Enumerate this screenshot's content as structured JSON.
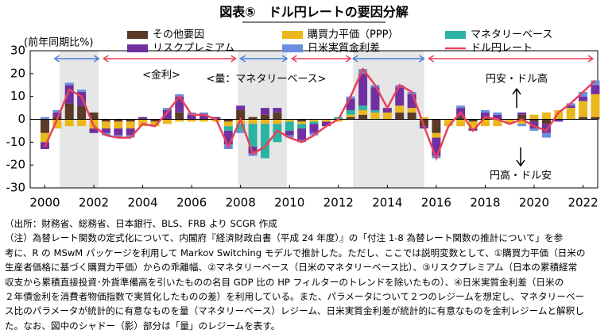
{
  "chart_data": {
    "type": "bar",
    "title": "図表⑤　ドル円レートの要因分解",
    "y_label": "(前年同期比%)",
    "x": [
      2000,
      2000.5,
      2001,
      2001.5,
      2002,
      2002.5,
      2003,
      2003.5,
      2004,
      2004.5,
      2005,
      2005.5,
      2006,
      2006.5,
      2007,
      2007.5,
      2008,
      2008.5,
      2009,
      2009.5,
      2010,
      2010.5,
      2011,
      2011.5,
      2012,
      2012.5,
      2013,
      2013.5,
      2014,
      2014.5,
      2015,
      2015.5,
      2016,
      2016.5,
      2017,
      2017.5,
      2018,
      2018.5,
      2019,
      2019.5,
      2020,
      2020.5,
      2021,
      2021.5,
      2022,
      2022.5
    ],
    "series": [
      {
        "name": "その他要因",
        "color": "#5b3a29",
        "values": [
          -6,
          1,
          7,
          6,
          3,
          -1,
          -1,
          -1,
          0,
          -1,
          0,
          3,
          0,
          0,
          0,
          -1,
          4,
          1,
          2,
          3,
          0,
          -1,
          0,
          0,
          0,
          1,
          2,
          0,
          0,
          3,
          3,
          -3,
          -6,
          0,
          1,
          -1,
          1,
          0,
          0,
          2,
          -1,
          -2,
          0,
          0,
          1,
          1
        ]
      },
      {
        "name": "購買力平価（PPP）",
        "color": "#eab71c",
        "values": [
          -4,
          -4,
          -3,
          -3,
          -4,
          -3,
          -3,
          -3,
          -3,
          -2,
          -2,
          -1,
          -1,
          -1,
          -1,
          -2,
          -2,
          -2,
          -2,
          -2,
          -1,
          -1,
          -1,
          -1,
          -1,
          1,
          2,
          3,
          3,
          3,
          2,
          1,
          -2,
          -3,
          -3,
          -3,
          -3,
          -3,
          -2,
          -2,
          2,
          3,
          4,
          5,
          7,
          10
        ]
      },
      {
        "name": "マネタリーベース",
        "color": "#2bb3a3",
        "values": [
          0,
          0,
          0,
          0,
          0,
          0,
          0,
          0,
          0,
          0,
          0,
          0,
          0,
          0,
          0,
          -2,
          -3,
          -10,
          -15,
          -8,
          -4,
          -2,
          -1,
          0,
          1,
          2,
          2,
          1,
          0,
          0,
          0,
          0,
          0,
          0,
          0,
          0,
          0,
          0,
          0,
          0,
          0,
          0,
          0,
          0,
          0,
          0
        ]
      },
      {
        "name": "リスクプレミアム",
        "color": "#7030a0",
        "values": [
          -3,
          2,
          8,
          6,
          -2,
          -2,
          -3,
          -3,
          1,
          0,
          4,
          7,
          2,
          2,
          1,
          -6,
          2,
          -3,
          3,
          2,
          -2,
          -5,
          -4,
          -2,
          0,
          5,
          14,
          10,
          2,
          8,
          6,
          -1,
          -8,
          0,
          4,
          -1,
          2,
          2,
          0,
          1,
          -3,
          -4,
          -1,
          1,
          2,
          4
        ]
      },
      {
        "name": "日米実質金利差",
        "color": "#6a8fdc",
        "values": [
          1,
          1,
          1,
          1,
          0,
          -1,
          -1,
          -1,
          0,
          0,
          1,
          1,
          1,
          1,
          0,
          -2,
          -1,
          -1,
          0,
          0,
          -1,
          -1,
          -1,
          0,
          0,
          1,
          2,
          1,
          0,
          1,
          1,
          0,
          -1,
          0,
          1,
          0,
          1,
          1,
          0,
          -1,
          -1,
          -2,
          0,
          1,
          2,
          2
        ]
      },
      {
        "name": "ドル円レート",
        "kind": "line",
        "color": "#e8415a",
        "values": [
          -12,
          0,
          13,
          10,
          -3,
          -7,
          -8,
          -8,
          -2,
          -3,
          3,
          10,
          2,
          2,
          0,
          -12,
          0,
          -15,
          -12,
          -5,
          -8,
          -10,
          -7,
          -3,
          0,
          10,
          22,
          15,
          5,
          15,
          12,
          -3,
          -17,
          -3,
          3,
          -5,
          1,
          0,
          -2,
          0,
          -3,
          -5,
          3,
          7,
          12,
          17
        ]
      }
    ],
    "xlim": [
      1999.4,
      2022.6
    ],
    "xticks": [
      2000,
      2002,
      2004,
      2006,
      2008,
      2010,
      2012,
      2014,
      2016,
      2018,
      2020,
      2022
    ],
    "ylim": [
      -30,
      30
    ],
    "yticks": [
      -30,
      -20,
      -10,
      0,
      10,
      20,
      30
    ],
    "shaded": [
      [
        2000.6,
        2002.2
      ],
      [
        2007.9,
        2009.9
      ],
      [
        2012.6,
        2015.5
      ]
    ],
    "regimes": [
      {
        "from": 2000.4,
        "to": 2002.2,
        "color": "#4a7fd8"
      },
      {
        "from": 2002.4,
        "to": 2007.8,
        "color": "#e8415a"
      },
      {
        "from": 2008,
        "to": 2009.9,
        "color": "#4a7fd8"
      },
      {
        "from": 2010.1,
        "to": 2012.5,
        "color": "#e8415a"
      },
      {
        "from": 2012.6,
        "to": 2015.5,
        "color": "#4a7fd8"
      },
      {
        "from": 2015.7,
        "to": 2022.4,
        "color": "#e8415a"
      }
    ],
    "annotations": [
      "<金利>",
      "<量：マネタリーベース>",
      "円安・ドル高",
      "円高・ドル安"
    ]
  },
  "notes": [
    "（出所：財務省、総務省、日本銀行、BLS、FRB より SCGR 作成",
    "（注）為替レート関数の定式化について、内閣府『経済財政白書（平成 24 年度）』の「付注 1-8 為替レート関数の推計について」を参",
    "考に、R の MSwM パッケージを利用して Markov Switching モデルで推計した。ただし、ここでは説明変数として、①購買力平価（日米の",
    "生産者価格に基づく購買力平価）からの乖離幅、②マネタリーベース（日米のマネタリーベース比）、③リスクプレミアム（日本の累積経常",
    "収支から累積直接投資･外貨準備高を引いたものの名目 GDP 比の HP フィルターのトレンドを除いたもの）、④日米実質金利差（日米の",
    "２年債金利を消費者物価指数で実質化したものの差）を利用している。また、パラメータについて２つのレジームを想定し、マネタリーベー",
    "ス比のパラメータが統計的に有意なものを量（マネタリーベース）レジーム、日米実質金利差が統計的に有意なものを金利レジームと解釈し",
    "た。なお、図中のシャドー（影）部分は「量」のレジームを表す。"
  ]
}
